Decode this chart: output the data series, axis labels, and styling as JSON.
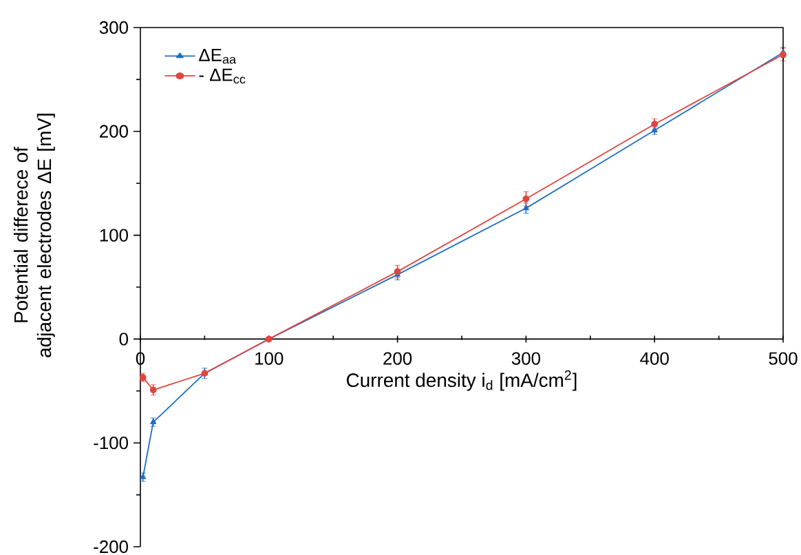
{
  "chart_data": {
    "type": "line",
    "xlabel": "Current density i$_{d}$ [mA/cm$^{2}$]",
    "ylabel": "Potential differece of adjacent electrodes ΔE [mV]",
    "x": [
      2,
      10,
      50,
      100,
      200,
      300,
      400,
      500
    ],
    "series": [
      {
        "name": "ΔE$_{aa}$",
        "color": "#1f6fc4",
        "marker": "triangle",
        "values": [
          -133,
          -80,
          -33,
          0,
          62,
          126,
          201,
          276
        ],
        "errors": [
          4,
          4,
          5,
          null,
          5,
          5,
          4,
          5
        ]
      },
      {
        "name": "- ΔE$_{cc}$",
        "color": "#e0463f",
        "marker": "circle",
        "values": [
          -37,
          -49,
          -33,
          0,
          65,
          135,
          207,
          274
        ],
        "errors": [
          4,
          5,
          null,
          null,
          6,
          7,
          5,
          6
        ]
      }
    ],
    "xlim": [
      0,
      500
    ],
    "xticks": [
      0,
      100,
      200,
      300,
      400,
      500
    ],
    "ylim": [
      -200,
      300
    ],
    "yticks": [
      -200,
      -100,
      0,
      100,
      200,
      300
    ],
    "legend": "top left",
    "grid": false,
    "line_style": "solid"
  }
}
